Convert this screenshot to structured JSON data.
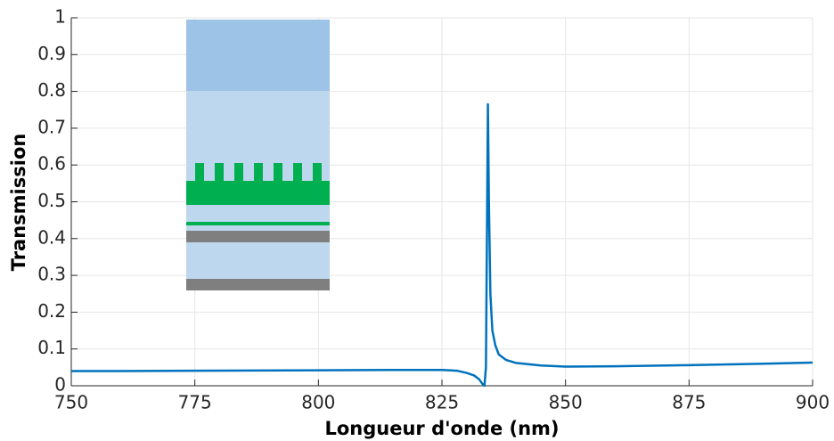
{
  "chart_data": {
    "type": "line",
    "xlabel": "Longueur d'onde (nm)",
    "ylabel": "Transmission",
    "x": [
      750,
      760,
      775,
      800,
      815,
      825,
      828,
      830,
      831.5,
      832.5,
      833.2,
      833.6,
      833.9,
      834.1,
      834.3,
      834.5,
      834.8,
      835.2,
      835.8,
      836.5,
      838,
      840,
      845,
      850,
      860,
      875,
      890,
      900
    ],
    "values": [
      0.04,
      0.04,
      0.041,
      0.042,
      0.043,
      0.043,
      0.041,
      0.035,
      0.028,
      0.018,
      0.005,
      0.0,
      0.05,
      0.4,
      0.765,
      0.5,
      0.25,
      0.15,
      0.11,
      0.085,
      0.07,
      0.062,
      0.055,
      0.052,
      0.053,
      0.056,
      0.06,
      0.063
    ],
    "color": "#0072bd",
    "xlim": [
      750,
      900
    ],
    "xticks": [
      750,
      775,
      800,
      825,
      850,
      875,
      900
    ],
    "ylim": [
      0,
      1
    ],
    "yticks": [
      0,
      0.1,
      0.2,
      0.3,
      0.4,
      0.5,
      0.6,
      0.7,
      0.8,
      0.9,
      1
    ],
    "grid": true
  }
}
